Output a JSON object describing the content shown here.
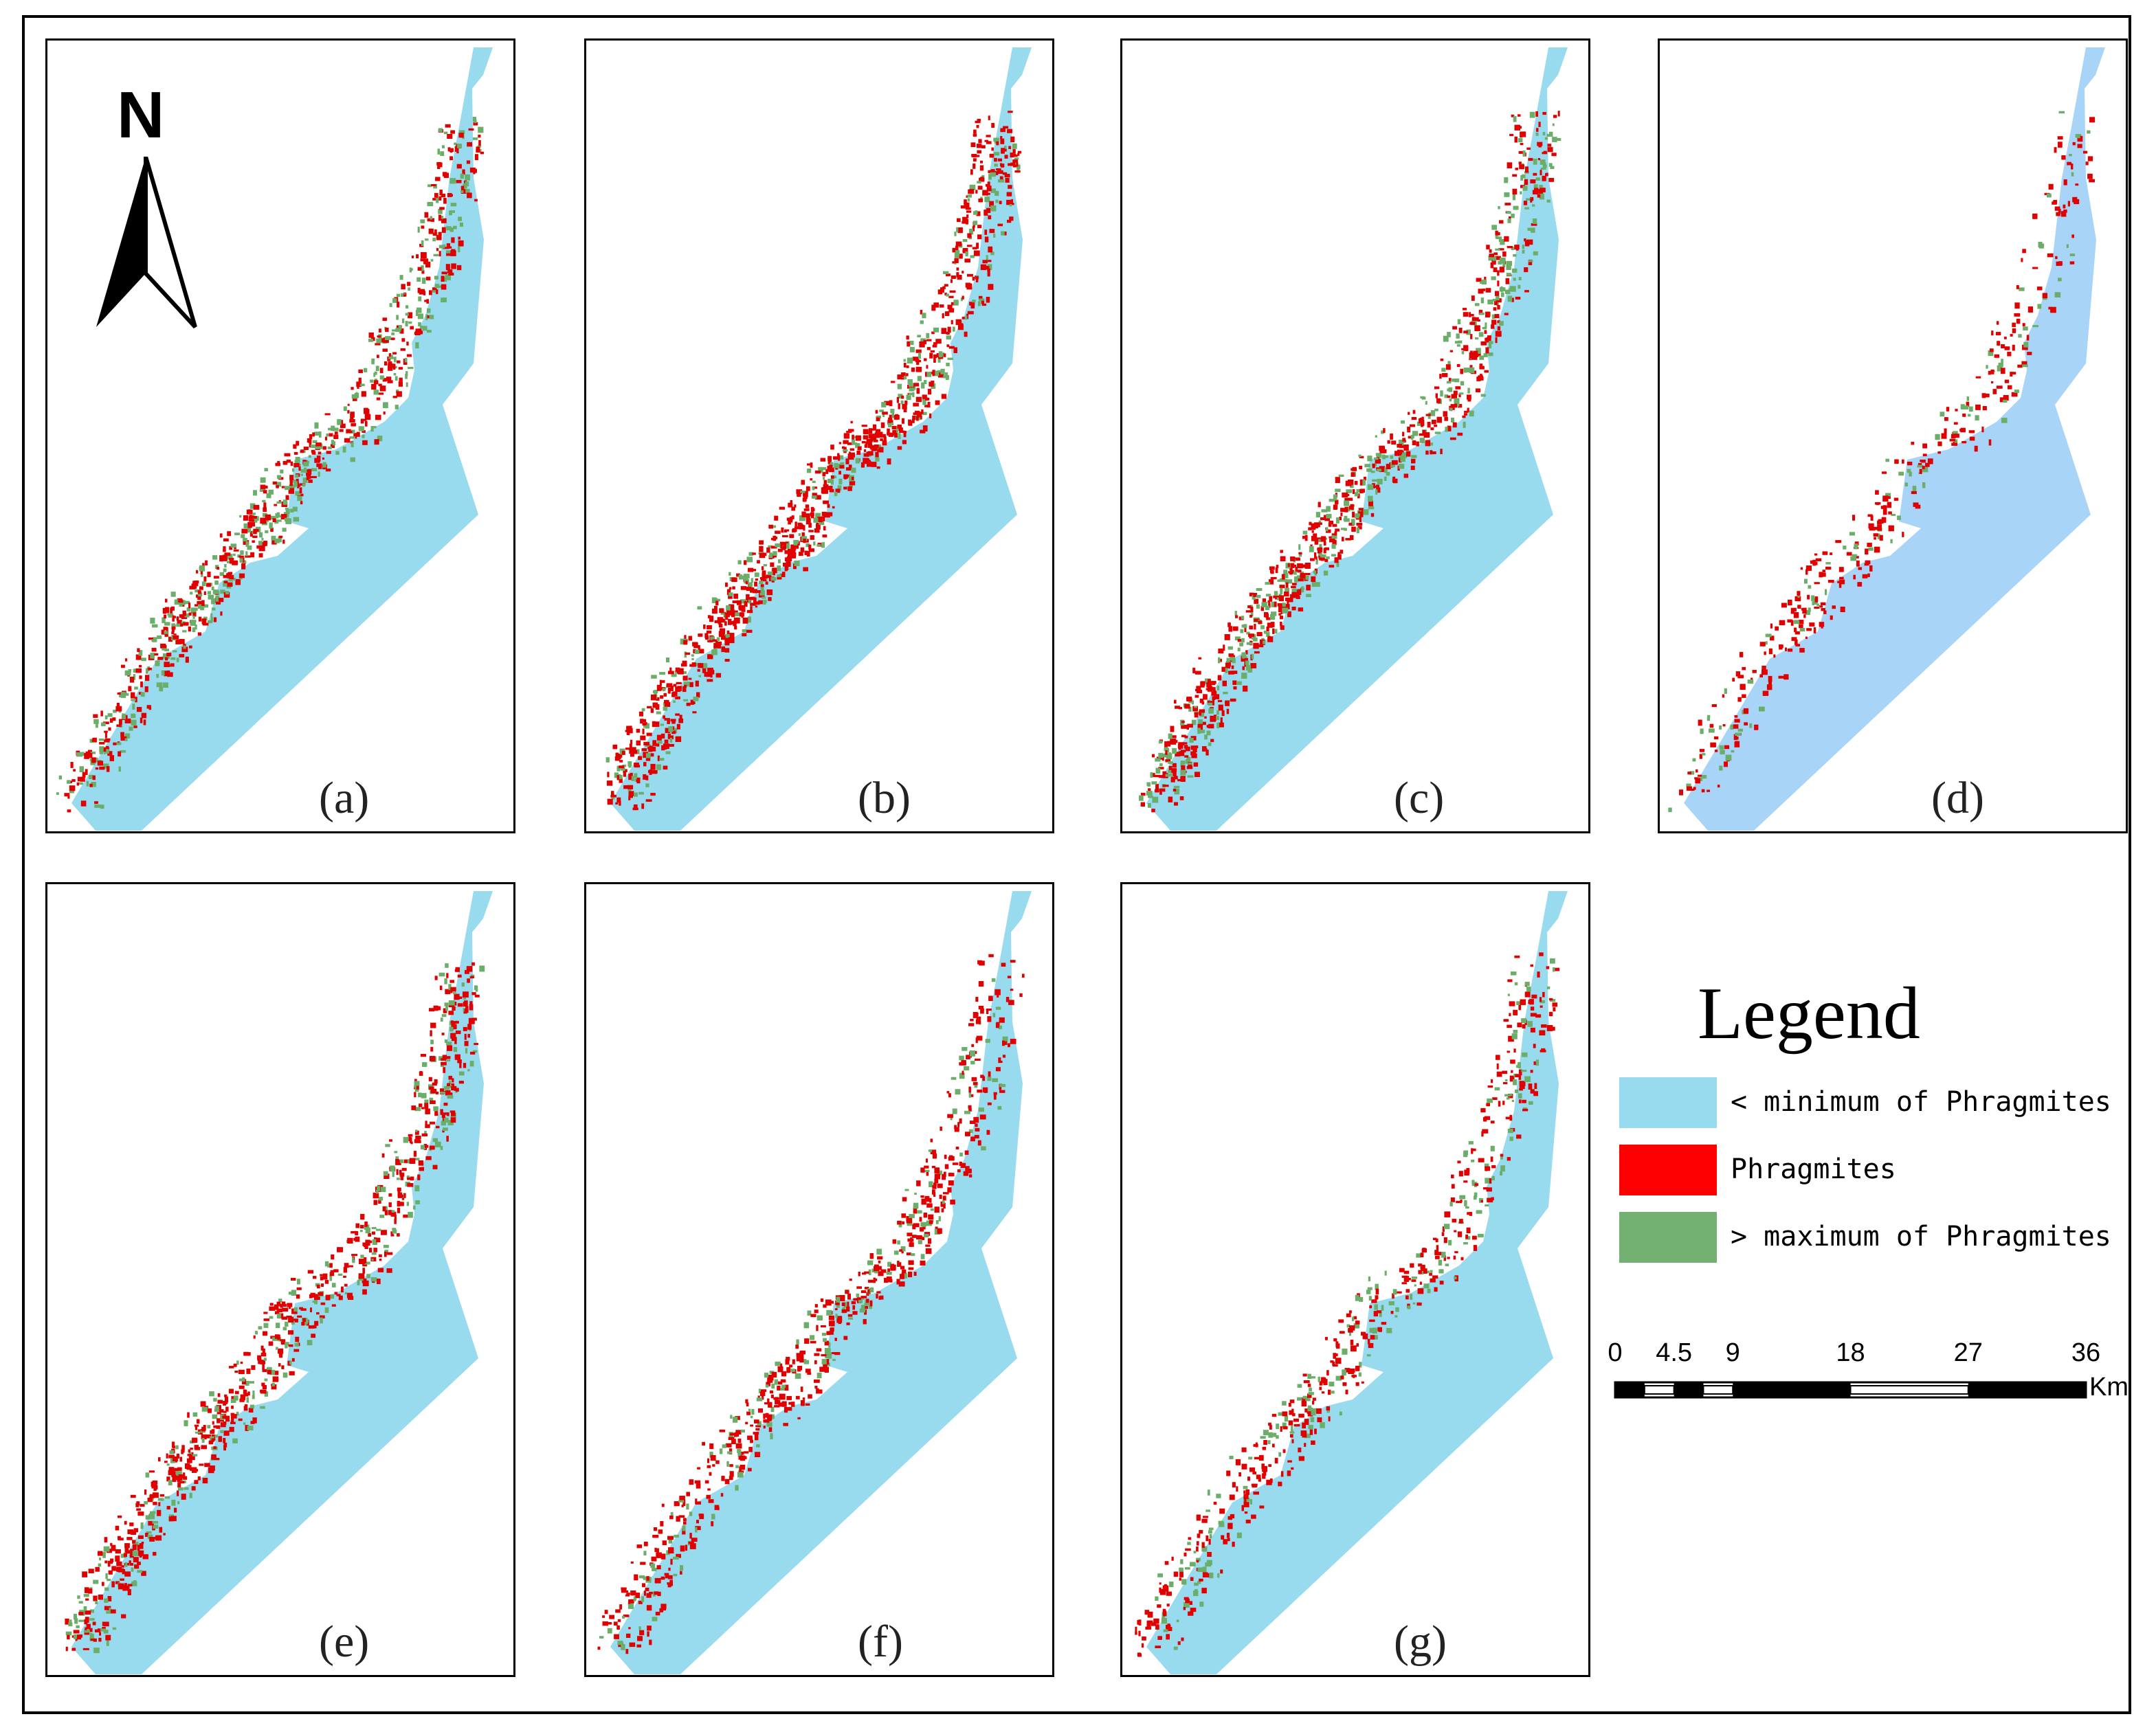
{
  "panels": [
    {
      "label": "(a)",
      "density": 1.0,
      "green_ratio": 0.45,
      "water_color": "#98daee"
    },
    {
      "label": "(b)",
      "density": 1.2,
      "green_ratio": 0.25,
      "water_color": "#98daee"
    },
    {
      "label": "(c)",
      "density": 1.1,
      "green_ratio": 0.4,
      "water_color": "#98daee"
    },
    {
      "label": "(d)",
      "density": 0.45,
      "green_ratio": 0.3,
      "water_color": "#a8d4f7"
    },
    {
      "label": "(e)",
      "density": 1.0,
      "green_ratio": 0.3,
      "water_color": "#98daee"
    },
    {
      "label": "(f)",
      "density": 0.75,
      "green_ratio": 0.25,
      "water_color": "#98daee"
    },
    {
      "label": "(g)",
      "density": 0.65,
      "green_ratio": 0.35,
      "water_color": "#98daee"
    }
  ],
  "north_arrow": {
    "letter": "N"
  },
  "legend": {
    "title": "Legend",
    "items": [
      {
        "label": "< minimum of Phragmites",
        "color": "#98daee"
      },
      {
        "label": "Phragmites",
        "color": "#ff0000"
      },
      {
        "label": "> maximum of Phragmites",
        "color": "#72b072"
      }
    ]
  },
  "scale_bar": {
    "ticks": [
      "0",
      "4.5",
      "9",
      "18",
      "27",
      "36"
    ],
    "tick_values": [
      0,
      4.5,
      9,
      18,
      27,
      36
    ],
    "unit": "Km"
  },
  "colors": {
    "phragmites": "#e00000",
    "above_max": "#6aae6a",
    "outline": "#000000"
  }
}
